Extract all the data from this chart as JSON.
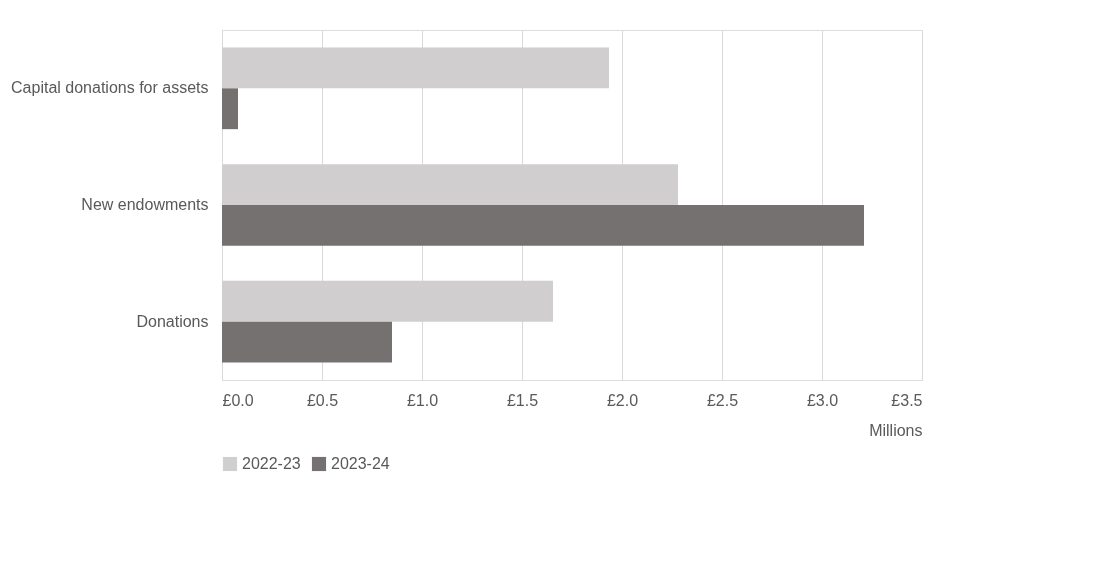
{
  "chart_data": {
    "type": "bar",
    "orientation": "horizontal",
    "categories": [
      "Capital donations for assets",
      "New endowments",
      "Donations"
    ],
    "series": [
      {
        "name": "2022-23",
        "color": "#d0cece",
        "values": [
          1.935,
          2.28,
          1.655
        ]
      },
      {
        "name": "2023-24",
        "color": "#767171",
        "values": [
          0.08,
          3.21,
          0.85
        ]
      }
    ],
    "xlim": [
      0,
      3.5
    ],
    "xticks": [
      {
        "value": 0,
        "label": "£0.0"
      },
      {
        "value": 0.5,
        "label": "£0.5"
      },
      {
        "value": 1,
        "label": "£1.0"
      },
      {
        "value": 1.5,
        "label": "£1.5"
      },
      {
        "value": 2,
        "label": "£2.0"
      },
      {
        "value": 2.5,
        "label": "£2.5"
      },
      {
        "value": 3,
        "label": "£3.0"
      },
      {
        "value": 3.5,
        "label": "£3.5"
      }
    ],
    "xlabel": "Millions",
    "grid": "x",
    "legend": "bottom"
  }
}
